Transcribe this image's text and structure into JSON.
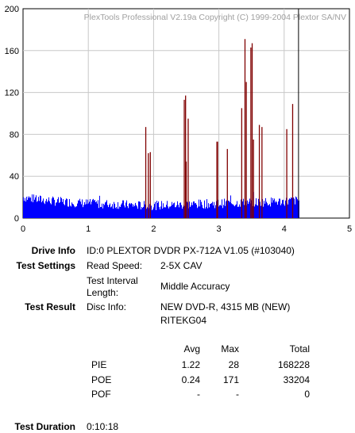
{
  "chart_data": {
    "type": "bar",
    "title": "PlexTools Professional V2.19a Copyright (C) 1999-2004 Plextor SA/NV",
    "xlabel": "",
    "ylabel": "",
    "xlim": [
      0,
      5
    ],
    "ylim": [
      0,
      200
    ],
    "x_ticks": [
      "0",
      "1",
      "2",
      "3",
      "4",
      "5"
    ],
    "y_ticks": [
      "0",
      "40",
      "80",
      "120",
      "160",
      "200"
    ],
    "grid": true,
    "end_marker_x": 4.22,
    "series": [
      {
        "name": "PIE",
        "color": "#0000ff",
        "baseline_profile": [
          [
            0.0,
            20
          ],
          [
            0.2,
            18
          ],
          [
            0.5,
            16
          ],
          [
            1.0,
            14
          ],
          [
            1.5,
            13
          ],
          [
            1.8,
            12
          ],
          [
            2.0,
            12
          ],
          [
            2.5,
            13
          ],
          [
            3.0,
            14
          ],
          [
            3.5,
            15
          ],
          [
            4.0,
            16
          ],
          [
            4.22,
            17
          ]
        ],
        "peak": 28
      },
      {
        "name": "POE",
        "color": "#800000",
        "spikes": [
          [
            1.88,
            87
          ],
          [
            1.92,
            62
          ],
          [
            1.95,
            63
          ],
          [
            2.47,
            113
          ],
          [
            2.49,
            117
          ],
          [
            2.5,
            54
          ],
          [
            2.53,
            95
          ],
          [
            2.97,
            73
          ],
          [
            2.98,
            73
          ],
          [
            3.13,
            66
          ],
          [
            3.35,
            105
          ],
          [
            3.4,
            171
          ],
          [
            3.42,
            130
          ],
          [
            3.49,
            163
          ],
          [
            3.51,
            167
          ],
          [
            3.53,
            75
          ],
          [
            3.62,
            89
          ],
          [
            3.66,
            87
          ],
          [
            4.04,
            85
          ],
          [
            4.13,
            109
          ]
        ]
      }
    ]
  },
  "info": {
    "drive_label": "Drive Info",
    "drive_value": "ID:0 PLEXTOR DVDR PX-712A V1.05 (#103040)",
    "settings_label": "Test Settings",
    "read_speed_label": "Read Speed:",
    "read_speed_value": "2-5X CAV",
    "interval_label_1": "Test Interval",
    "interval_label_2": "Length:",
    "interval_value": "Middle Accuracy",
    "result_label": "Test Result",
    "disc_label": "Disc Info:",
    "disc_value_1": "NEW DVD-R, 4315 MB (NEW)",
    "disc_value_2": "RITEKG04",
    "duration_label": "Test Duration",
    "duration_value": "0:10:18"
  },
  "stats": {
    "headers": {
      "avg": "Avg",
      "max": "Max",
      "total": "Total"
    },
    "rows": [
      {
        "name": "PIE",
        "avg": "1.22",
        "max": "28",
        "total": "168228"
      },
      {
        "name": "POE",
        "avg": "0.24",
        "max": "171",
        "total": "33204"
      },
      {
        "name": "POF",
        "avg": "-",
        "max": "-",
        "total": "0"
      }
    ]
  }
}
